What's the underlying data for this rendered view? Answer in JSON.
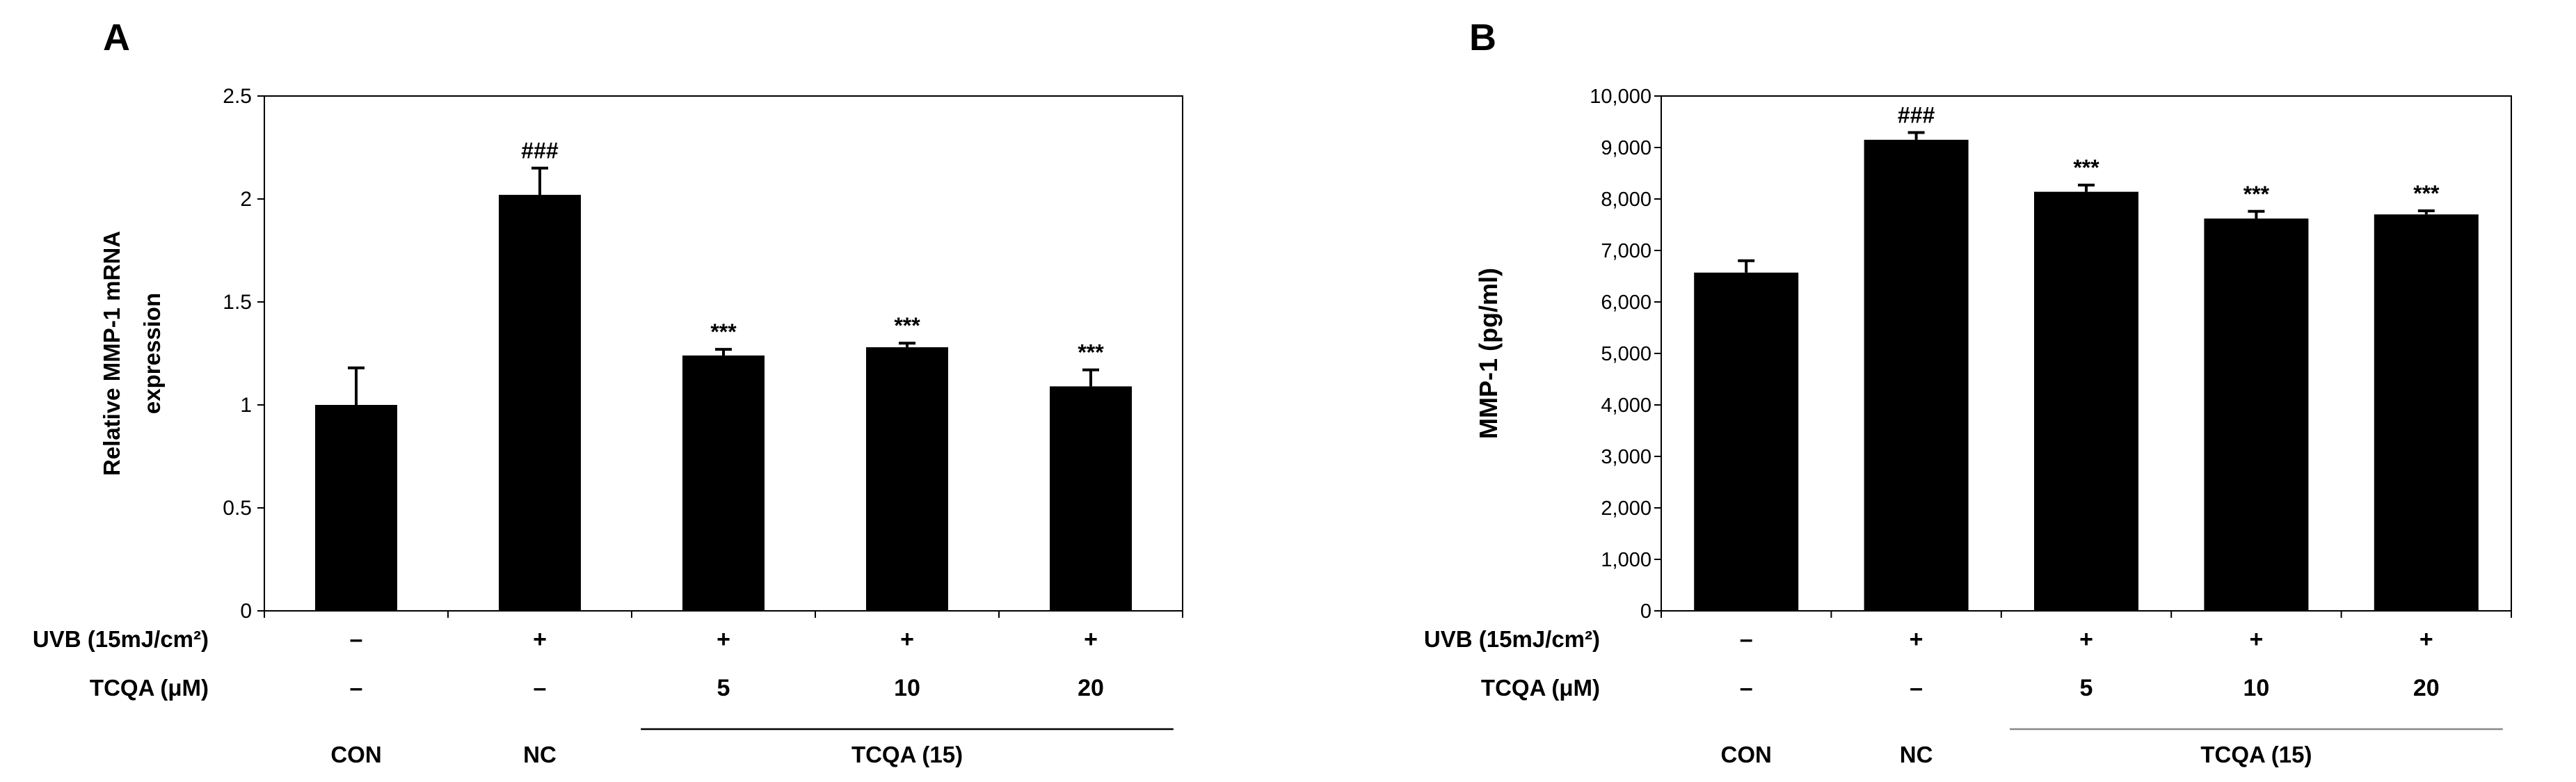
{
  "panels": [
    {
      "letter": "A",
      "chart_data": {
        "type": "bar",
        "title": "",
        "ylabel_lines": [
          "Relative MMP-1 mRNA",
          "expression"
        ],
        "xlabel": "",
        "categories": [
          "CON",
          "NC",
          "5",
          "10",
          "20"
        ],
        "values": [
          1.0,
          2.02,
          1.24,
          1.28,
          1.09
        ],
        "errors": [
          0.18,
          0.13,
          0.03,
          0.02,
          0.08
        ],
        "annotations": [
          "",
          "###",
          "***",
          "***",
          "***"
        ],
        "ylim": [
          0,
          2.5
        ],
        "yticks": [
          0,
          0.5,
          1,
          1.5,
          2,
          2.5
        ],
        "ytick_labels": [
          "0",
          "0.5",
          "1",
          "1.5",
          "2",
          "2.5"
        ],
        "bar_color": "#000000",
        "rows": [
          {
            "label": "UVB (15mJ/cm²)",
            "values": [
              "–",
              "+",
              "+",
              "+",
              "+"
            ]
          },
          {
            "label": "TCQA (μM)",
            "values": [
              "–",
              "–",
              "5",
              "10",
              "20"
            ]
          }
        ],
        "group_labels": [
          "CON",
          "NC",
          "TCQA (15)"
        ]
      }
    },
    {
      "letter": "B",
      "chart_data": {
        "type": "bar",
        "title": "",
        "ylabel_lines": [
          "MMP-1 (pg/ml)"
        ],
        "xlabel": "",
        "categories": [
          "CON",
          "NC",
          "5",
          "10",
          "20"
        ],
        "values": [
          6570,
          9150,
          8140,
          7620,
          7700
        ],
        "errors": [
          230,
          140,
          130,
          140,
          70
        ],
        "annotations": [
          "",
          "###",
          "***",
          "***",
          "***"
        ],
        "ylim": [
          0,
          10000
        ],
        "yticks": [
          0,
          1000,
          2000,
          3000,
          4000,
          5000,
          6000,
          7000,
          8000,
          9000,
          10000
        ],
        "ytick_labels": [
          "0",
          "1,000",
          "2,000",
          "3,000",
          "4,000",
          "5,000",
          "6,000",
          "7,000",
          "8,000",
          "9,000",
          "10,000"
        ],
        "bar_color": "#000000",
        "rows": [
          {
            "label": "UVB (15mJ/cm²)",
            "values": [
              "–",
              "+",
              "+",
              "+",
              "+"
            ]
          },
          {
            "label": "TCQA (μM)",
            "values": [
              "–",
              "–",
              "5",
              "10",
              "20"
            ]
          }
        ],
        "group_labels": [
          "CON",
          "NC",
          "TCQA (15)"
        ]
      }
    }
  ]
}
